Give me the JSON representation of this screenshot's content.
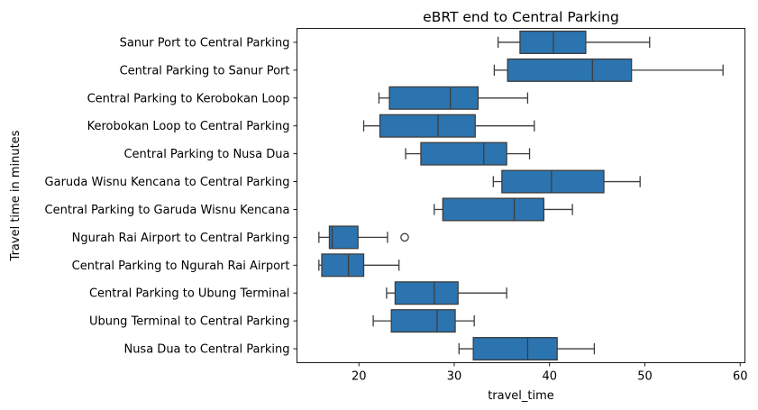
{
  "chart_data": {
    "type": "box",
    "orientation": "horizontal",
    "title": "eBRT end to Central Parking",
    "xlabel": "travel_time",
    "ylabel": "Travel time in minutes",
    "xlim": [
      13.5,
      60.5
    ],
    "xticks": [
      20,
      30,
      40,
      50,
      60
    ],
    "xtick_labels": [
      "20",
      "30",
      "40",
      "50",
      "60"
    ],
    "box_color": "#2b74b0",
    "line_color": "#3d3d3d",
    "grid": false,
    "categories": [
      "Sanur Port to Central Parking",
      "Central Parking to Sanur Port",
      "Central Parking to Kerobokan Loop",
      "Kerobokan Loop to Central Parking",
      "Central Parking to Nusa Dua",
      "Garuda Wisnu Kencana to Central Parking",
      "Central Parking to Garuda Wisnu Kencana",
      "Ngurah Rai Airport to Central Parking",
      "Central Parking to Ngurah Rai Airport",
      "Central Parking to Ubung Terminal",
      "Ubung Terminal to Central Parking",
      "Nusa Dua to Central Parking"
    ],
    "boxes": [
      {
        "whisker_low": 34.6,
        "q1": 36.9,
        "median": 40.4,
        "q3": 43.8,
        "whisker_high": 50.5,
        "outliers": []
      },
      {
        "whisker_low": 34.2,
        "q1": 35.6,
        "median": 44.5,
        "q3": 48.6,
        "whisker_high": 58.2,
        "outliers": []
      },
      {
        "whisker_low": 22.1,
        "q1": 23.2,
        "median": 29.6,
        "q3": 32.5,
        "whisker_high": 37.7,
        "outliers": []
      },
      {
        "whisker_low": 20.5,
        "q1": 22.2,
        "median": 28.3,
        "q3": 32.2,
        "whisker_high": 38.4,
        "outliers": []
      },
      {
        "whisker_low": 24.9,
        "q1": 26.5,
        "median": 33.1,
        "q3": 35.5,
        "whisker_high": 37.9,
        "outliers": []
      },
      {
        "whisker_low": 34.1,
        "q1": 35.0,
        "median": 40.2,
        "q3": 45.7,
        "whisker_high": 49.5,
        "outliers": []
      },
      {
        "whisker_low": 27.9,
        "q1": 28.8,
        "median": 36.3,
        "q3": 39.4,
        "whisker_high": 42.4,
        "outliers": []
      },
      {
        "whisker_low": 15.8,
        "q1": 16.9,
        "median": 17.2,
        "q3": 19.9,
        "whisker_high": 23.0,
        "outliers": [
          24.8
        ]
      },
      {
        "whisker_low": 15.8,
        "q1": 16.1,
        "median": 18.9,
        "q3": 20.5,
        "whisker_high": 24.2,
        "outliers": []
      },
      {
        "whisker_low": 22.9,
        "q1": 23.8,
        "median": 27.9,
        "q3": 30.4,
        "whisker_high": 35.5,
        "outliers": []
      },
      {
        "whisker_low": 21.5,
        "q1": 23.4,
        "median": 28.2,
        "q3": 30.1,
        "whisker_high": 32.1,
        "outliers": []
      },
      {
        "whisker_low": 30.5,
        "q1": 32.0,
        "median": 37.7,
        "q3": 40.8,
        "whisker_high": 44.7,
        "outliers": []
      }
    ]
  }
}
